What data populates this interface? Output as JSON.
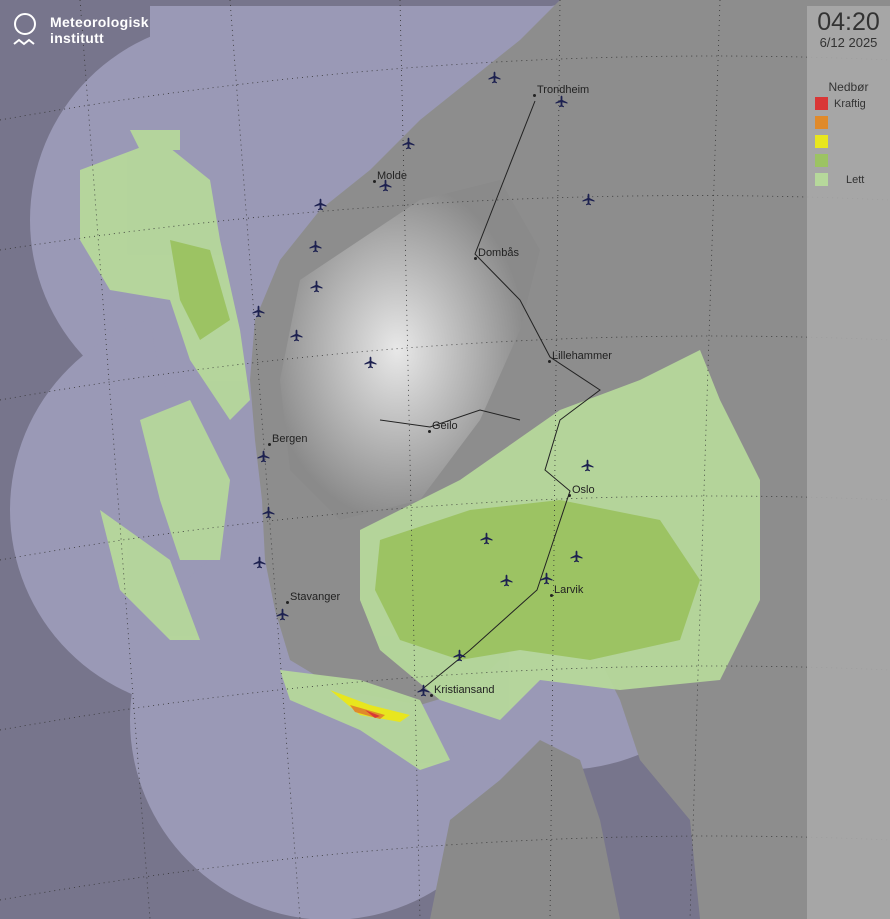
{
  "logo": {
    "name_line1": "Meteorologisk",
    "name_line2": "institutt"
  },
  "timestamp": {
    "time": "04:20",
    "date": "6/12 2025"
  },
  "legend": {
    "title": "Nedbør",
    "items": [
      {
        "label": "Kraftig",
        "color": "#d93636"
      },
      {
        "label": "",
        "color": "#e08a2a"
      },
      {
        "label": "",
        "color": "#e8e61e"
      },
      {
        "label": "",
        "color": "#9cc363"
      },
      {
        "label": "Lett",
        "color": "#b6d89b"
      }
    ]
  },
  "cities": [
    "Trondheim",
    "Molde",
    "Dombås",
    "Lillehammer",
    "Geilo",
    "Bergen",
    "Oslo",
    "Stavanger",
    "Larvik",
    "Kristiansand"
  ],
  "icons": {
    "airport": "airplane-icon"
  },
  "colors": {
    "sea": "#77758c",
    "radar_coverage": "#9796b3",
    "land": "#8e8e8e"
  }
}
